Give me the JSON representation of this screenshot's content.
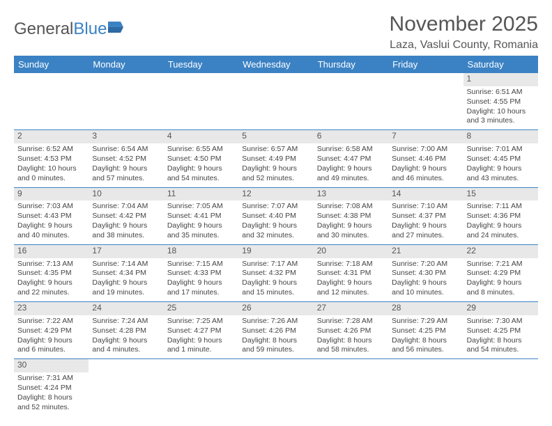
{
  "logo": {
    "word1": "General",
    "word2": "Blue"
  },
  "header": {
    "month_title": "November 2025",
    "location": "Laza, Vaslui County, Romania"
  },
  "calendar": {
    "header_bg": "#3b82c4",
    "header_fg": "#ffffff",
    "daynum_bg": "#e8e8e8",
    "rule_color": "#3b82c4",
    "day_headers": [
      "Sunday",
      "Monday",
      "Tuesday",
      "Wednesday",
      "Thursday",
      "Friday",
      "Saturday"
    ],
    "weeks": [
      [
        {
          "n": "",
          "sr": "",
          "ss": "",
          "dl": ""
        },
        {
          "n": "",
          "sr": "",
          "ss": "",
          "dl": ""
        },
        {
          "n": "",
          "sr": "",
          "ss": "",
          "dl": ""
        },
        {
          "n": "",
          "sr": "",
          "ss": "",
          "dl": ""
        },
        {
          "n": "",
          "sr": "",
          "ss": "",
          "dl": ""
        },
        {
          "n": "",
          "sr": "",
          "ss": "",
          "dl": ""
        },
        {
          "n": "1",
          "sr": "Sunrise: 6:51 AM",
          "ss": "Sunset: 4:55 PM",
          "dl": "Daylight: 10 hours and 3 minutes."
        }
      ],
      [
        {
          "n": "2",
          "sr": "Sunrise: 6:52 AM",
          "ss": "Sunset: 4:53 PM",
          "dl": "Daylight: 10 hours and 0 minutes."
        },
        {
          "n": "3",
          "sr": "Sunrise: 6:54 AM",
          "ss": "Sunset: 4:52 PM",
          "dl": "Daylight: 9 hours and 57 minutes."
        },
        {
          "n": "4",
          "sr": "Sunrise: 6:55 AM",
          "ss": "Sunset: 4:50 PM",
          "dl": "Daylight: 9 hours and 54 minutes."
        },
        {
          "n": "5",
          "sr": "Sunrise: 6:57 AM",
          "ss": "Sunset: 4:49 PM",
          "dl": "Daylight: 9 hours and 52 minutes."
        },
        {
          "n": "6",
          "sr": "Sunrise: 6:58 AM",
          "ss": "Sunset: 4:47 PM",
          "dl": "Daylight: 9 hours and 49 minutes."
        },
        {
          "n": "7",
          "sr": "Sunrise: 7:00 AM",
          "ss": "Sunset: 4:46 PM",
          "dl": "Daylight: 9 hours and 46 minutes."
        },
        {
          "n": "8",
          "sr": "Sunrise: 7:01 AM",
          "ss": "Sunset: 4:45 PM",
          "dl": "Daylight: 9 hours and 43 minutes."
        }
      ],
      [
        {
          "n": "9",
          "sr": "Sunrise: 7:03 AM",
          "ss": "Sunset: 4:43 PM",
          "dl": "Daylight: 9 hours and 40 minutes."
        },
        {
          "n": "10",
          "sr": "Sunrise: 7:04 AM",
          "ss": "Sunset: 4:42 PM",
          "dl": "Daylight: 9 hours and 38 minutes."
        },
        {
          "n": "11",
          "sr": "Sunrise: 7:05 AM",
          "ss": "Sunset: 4:41 PM",
          "dl": "Daylight: 9 hours and 35 minutes."
        },
        {
          "n": "12",
          "sr": "Sunrise: 7:07 AM",
          "ss": "Sunset: 4:40 PM",
          "dl": "Daylight: 9 hours and 32 minutes."
        },
        {
          "n": "13",
          "sr": "Sunrise: 7:08 AM",
          "ss": "Sunset: 4:38 PM",
          "dl": "Daylight: 9 hours and 30 minutes."
        },
        {
          "n": "14",
          "sr": "Sunrise: 7:10 AM",
          "ss": "Sunset: 4:37 PM",
          "dl": "Daylight: 9 hours and 27 minutes."
        },
        {
          "n": "15",
          "sr": "Sunrise: 7:11 AM",
          "ss": "Sunset: 4:36 PM",
          "dl": "Daylight: 9 hours and 24 minutes."
        }
      ],
      [
        {
          "n": "16",
          "sr": "Sunrise: 7:13 AM",
          "ss": "Sunset: 4:35 PM",
          "dl": "Daylight: 9 hours and 22 minutes."
        },
        {
          "n": "17",
          "sr": "Sunrise: 7:14 AM",
          "ss": "Sunset: 4:34 PM",
          "dl": "Daylight: 9 hours and 19 minutes."
        },
        {
          "n": "18",
          "sr": "Sunrise: 7:15 AM",
          "ss": "Sunset: 4:33 PM",
          "dl": "Daylight: 9 hours and 17 minutes."
        },
        {
          "n": "19",
          "sr": "Sunrise: 7:17 AM",
          "ss": "Sunset: 4:32 PM",
          "dl": "Daylight: 9 hours and 15 minutes."
        },
        {
          "n": "20",
          "sr": "Sunrise: 7:18 AM",
          "ss": "Sunset: 4:31 PM",
          "dl": "Daylight: 9 hours and 12 minutes."
        },
        {
          "n": "21",
          "sr": "Sunrise: 7:20 AM",
          "ss": "Sunset: 4:30 PM",
          "dl": "Daylight: 9 hours and 10 minutes."
        },
        {
          "n": "22",
          "sr": "Sunrise: 7:21 AM",
          "ss": "Sunset: 4:29 PM",
          "dl": "Daylight: 9 hours and 8 minutes."
        }
      ],
      [
        {
          "n": "23",
          "sr": "Sunrise: 7:22 AM",
          "ss": "Sunset: 4:29 PM",
          "dl": "Daylight: 9 hours and 6 minutes."
        },
        {
          "n": "24",
          "sr": "Sunrise: 7:24 AM",
          "ss": "Sunset: 4:28 PM",
          "dl": "Daylight: 9 hours and 4 minutes."
        },
        {
          "n": "25",
          "sr": "Sunrise: 7:25 AM",
          "ss": "Sunset: 4:27 PM",
          "dl": "Daylight: 9 hours and 1 minute."
        },
        {
          "n": "26",
          "sr": "Sunrise: 7:26 AM",
          "ss": "Sunset: 4:26 PM",
          "dl": "Daylight: 8 hours and 59 minutes."
        },
        {
          "n": "27",
          "sr": "Sunrise: 7:28 AM",
          "ss": "Sunset: 4:26 PM",
          "dl": "Daylight: 8 hours and 58 minutes."
        },
        {
          "n": "28",
          "sr": "Sunrise: 7:29 AM",
          "ss": "Sunset: 4:25 PM",
          "dl": "Daylight: 8 hours and 56 minutes."
        },
        {
          "n": "29",
          "sr": "Sunrise: 7:30 AM",
          "ss": "Sunset: 4:25 PM",
          "dl": "Daylight: 8 hours and 54 minutes."
        }
      ],
      [
        {
          "n": "30",
          "sr": "Sunrise: 7:31 AM",
          "ss": "Sunset: 4:24 PM",
          "dl": "Daylight: 8 hours and 52 minutes."
        },
        {
          "n": "",
          "sr": "",
          "ss": "",
          "dl": ""
        },
        {
          "n": "",
          "sr": "",
          "ss": "",
          "dl": ""
        },
        {
          "n": "",
          "sr": "",
          "ss": "",
          "dl": ""
        },
        {
          "n": "",
          "sr": "",
          "ss": "",
          "dl": ""
        },
        {
          "n": "",
          "sr": "",
          "ss": "",
          "dl": ""
        },
        {
          "n": "",
          "sr": "",
          "ss": "",
          "dl": ""
        }
      ]
    ]
  }
}
